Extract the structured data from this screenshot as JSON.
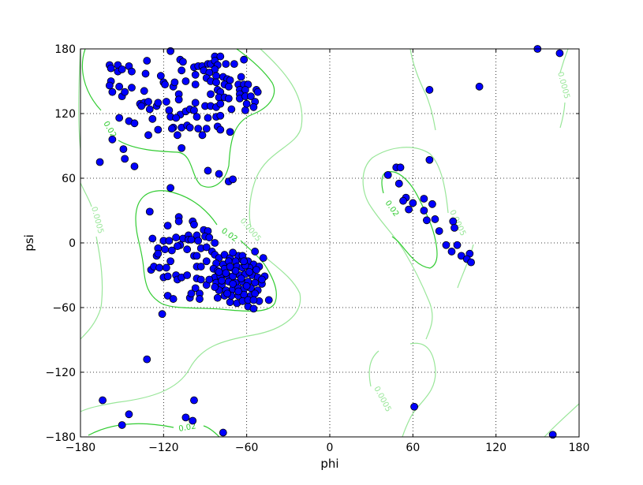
{
  "chart_data": {
    "type": "scatter",
    "title": "",
    "xlabel": "phi",
    "ylabel": "psi",
    "xlim": [
      -180,
      180
    ],
    "ylim": [
      -180,
      180
    ],
    "x_ticks": [
      "−180",
      "−120",
      "−60",
      "0",
      "60",
      "120",
      "180"
    ],
    "y_ticks": [
      "−180",
      "−120",
      "−60",
      "0",
      "60",
      "120",
      "180"
    ],
    "tick_values": [
      -180,
      -120,
      -60,
      0,
      60,
      120,
      180
    ],
    "grid": true,
    "marker_color": "#0000ff",
    "marker_edge": "#000000",
    "contour_levels": [
      {
        "level": "0.02",
        "color": "#33cc33"
      },
      {
        "level": "0.0005",
        "color": "#99e699"
      }
    ],
    "points": [
      [
        72,
        77
      ],
      [
        48,
        70
      ],
      [
        51,
        70
      ],
      [
        42,
        63
      ],
      [
        50,
        55
      ],
      [
        55,
        42
      ],
      [
        53,
        39
      ],
      [
        60,
        37
      ],
      [
        57,
        31
      ],
      [
        68,
        41
      ],
      [
        74,
        36
      ],
      [
        68,
        30
      ],
      [
        70,
        21
      ],
      [
        76,
        22
      ],
      [
        79,
        11
      ],
      [
        89,
        20
      ],
      [
        90,
        14
      ],
      [
        84,
        -2
      ],
      [
        92,
        -2
      ],
      [
        88,
        -8
      ],
      [
        95,
        -12
      ],
      [
        101,
        -10
      ],
      [
        99,
        -15
      ],
      [
        102,
        -18
      ],
      [
        72,
        142
      ],
      [
        108,
        145
      ],
      [
        61,
        -152
      ],
      [
        150,
        180
      ],
      [
        166,
        176
      ],
      [
        161,
        -178
      ],
      [
        -115,
        178
      ],
      [
        -132,
        169
      ],
      [
        -108,
        170
      ],
      [
        -106,
        168
      ],
      [
        -159,
        165
      ],
      [
        -153,
        165
      ],
      [
        -145,
        164
      ],
      [
        -158,
        162
      ],
      [
        -153,
        159
      ],
      [
        -150,
        161
      ],
      [
        -143,
        159
      ],
      [
        -133,
        157
      ],
      [
        -122,
        155
      ],
      [
        -98,
        163
      ],
      [
        -95,
        164
      ],
      [
        -92,
        164
      ],
      [
        -88,
        166
      ],
      [
        -86,
        166
      ],
      [
        -83,
        173
      ],
      [
        -79,
        173
      ],
      [
        -83,
        169
      ],
      [
        -81,
        165
      ],
      [
        -75,
        166
      ],
      [
        -69,
        166
      ],
      [
        -62,
        170
      ],
      [
        -83,
        161
      ],
      [
        -107,
        160
      ],
      [
        -97,
        156
      ],
      [
        -91,
        160
      ],
      [
        -87,
        158
      ],
      [
        -82,
        155
      ],
      [
        -89,
        153
      ],
      [
        -86,
        150
      ],
      [
        -82,
        149
      ],
      [
        -77,
        154
      ],
      [
        -74,
        152
      ],
      [
        -72,
        151
      ],
      [
        -64,
        154
      ],
      [
        -158,
        150
      ],
      [
        -159,
        146
      ],
      [
        -152,
        145
      ],
      [
        -157,
        140
      ],
      [
        -143,
        144
      ],
      [
        -150,
        136
      ],
      [
        -148,
        140
      ],
      [
        -134,
        141
      ],
      [
        -120,
        149
      ],
      [
        -119,
        147
      ],
      [
        -113,
        145
      ],
      [
        -112,
        149
      ],
      [
        -104,
        150
      ],
      [
        -97,
        147
      ],
      [
        -76,
        147
      ],
      [
        -73,
        145
      ],
      [
        -66,
        147
      ],
      [
        -62,
        147
      ],
      [
        -59,
        147
      ],
      [
        -65,
        142
      ],
      [
        -61,
        142
      ],
      [
        -53,
        142
      ],
      [
        -52,
        140
      ],
      [
        -86,
        138
      ],
      [
        -81,
        142
      ],
      [
        -79,
        140
      ],
      [
        -80,
        135
      ],
      [
        -76,
        135
      ],
      [
        -73,
        134
      ],
      [
        -65,
        138
      ],
      [
        -65,
        134
      ],
      [
        -61,
        136
      ],
      [
        -57,
        136
      ],
      [
        -109,
        138
      ],
      [
        -109,
        133
      ],
      [
        -137,
        129
      ],
      [
        -134,
        130
      ],
      [
        -131,
        131
      ],
      [
        -136,
        127
      ],
      [
        -130,
        124
      ],
      [
        -125,
        127
      ],
      [
        -124,
        130
      ],
      [
        -118,
        131
      ],
      [
        -97,
        130
      ],
      [
        -90,
        127
      ],
      [
        -86,
        127
      ],
      [
        -82,
        126
      ],
      [
        -79,
        129
      ],
      [
        -71,
        124
      ],
      [
        -61,
        123
      ],
      [
        -60,
        129
      ],
      [
        -54,
        131
      ],
      [
        -55,
        126
      ],
      [
        -116,
        123
      ],
      [
        -115,
        117
      ],
      [
        -108,
        119
      ],
      [
        -104,
        122
      ],
      [
        -101,
        124
      ],
      [
        -98,
        123
      ],
      [
        -96,
        117
      ],
      [
        -88,
        116
      ],
      [
        -82,
        117
      ],
      [
        -79,
        118
      ],
      [
        -152,
        116
      ],
      [
        -145,
        113
      ],
      [
        -141,
        111
      ],
      [
        -128,
        115
      ],
      [
        -113,
        107
      ],
      [
        -114,
        106
      ],
      [
        -111,
        116
      ],
      [
        -107,
        107
      ],
      [
        -103,
        109
      ],
      [
        -101,
        107
      ],
      [
        -95,
        106
      ],
      [
        -89,
        106
      ],
      [
        -92,
        100
      ],
      [
        -81,
        108
      ],
      [
        -79,
        105
      ],
      [
        -72,
        103
      ],
      [
        -124,
        105
      ],
      [
        -131,
        100
      ],
      [
        -110,
        100
      ],
      [
        -157,
        96
      ],
      [
        -149,
        87
      ],
      [
        -148,
        78
      ],
      [
        -141,
        71
      ],
      [
        -166,
        75
      ],
      [
        -107,
        88
      ],
      [
        -88,
        67
      ],
      [
        -80,
        64
      ],
      [
        -73,
        57
      ],
      [
        -70,
        59
      ],
      [
        -115,
        51
      ],
      [
        -130,
        29
      ],
      [
        -109,
        24
      ],
      [
        -109,
        20
      ],
      [
        -99,
        20
      ],
      [
        -98,
        17
      ],
      [
        -117,
        16
      ],
      [
        -91,
        12
      ],
      [
        -88,
        11
      ],
      [
        -128,
        4
      ],
      [
        -111,
        5
      ],
      [
        -120,
        2
      ],
      [
        -116,
        2
      ],
      [
        -106,
        4
      ],
      [
        -102,
        7
      ],
      [
        -102,
        3
      ],
      [
        -100,
        3
      ],
      [
        -96,
        7
      ],
      [
        -95,
        2
      ],
      [
        -90,
        6
      ],
      [
        -87,
        5
      ],
      [
        -108,
        -2
      ],
      [
        -110,
        -3
      ],
      [
        -114,
        -7
      ],
      [
        -119,
        -6
      ],
      [
        -124,
        -5
      ],
      [
        -125,
        -12
      ],
      [
        -124,
        -10
      ],
      [
        -103,
        -6
      ],
      [
        -98,
        -12
      ],
      [
        -96,
        -12
      ],
      [
        -93,
        -5
      ],
      [
        -89,
        -4
      ],
      [
        -83,
        0
      ],
      [
        -85,
        -8
      ],
      [
        -115,
        -17
      ],
      [
        -129,
        -25
      ],
      [
        -127,
        -22
      ],
      [
        -123,
        -23
      ],
      [
        -118,
        -23
      ],
      [
        -96,
        -22
      ],
      [
        -93,
        -22
      ],
      [
        -89,
        -17
      ],
      [
        -54,
        -8
      ],
      [
        -48,
        -14
      ],
      [
        -120,
        -32
      ],
      [
        -117,
        -31
      ],
      [
        -111,
        -30
      ],
      [
        -110,
        -34
      ],
      [
        -107,
        -32
      ],
      [
        -103,
        -30
      ],
      [
        -96,
        -33
      ],
      [
        -93,
        -34
      ],
      [
        -89,
        -39
      ],
      [
        -97,
        -42
      ],
      [
        -117,
        -49
      ],
      [
        -113,
        -52
      ],
      [
        -101,
        -51
      ],
      [
        -100,
        -47
      ],
      [
        -94,
        -47
      ],
      [
        -94,
        -52
      ],
      [
        -81,
        -51
      ],
      [
        -72,
        -55
      ],
      [
        -67,
        -56
      ],
      [
        -59,
        -59
      ],
      [
        -55,
        -61
      ],
      [
        -51,
        -54
      ],
      [
        -44,
        -53
      ],
      [
        -121,
        -66
      ],
      [
        -83,
        -11
      ],
      [
        -80,
        -14
      ],
      [
        -76,
        -11
      ],
      [
        -72,
        -14
      ],
      [
        -66,
        -12
      ],
      [
        -82,
        -19
      ],
      [
        -77,
        -20
      ],
      [
        -73,
        -17
      ],
      [
        -68,
        -17
      ],
      [
        -63,
        -16
      ],
      [
        -59,
        -17
      ],
      [
        -55,
        -20
      ],
      [
        -51,
        -22
      ],
      [
        -84,
        -24
      ],
      [
        -81,
        -26
      ],
      [
        -76,
        -24
      ],
      [
        -71,
        -23
      ],
      [
        -67,
        -22
      ],
      [
        -63,
        -23
      ],
      [
        -58,
        -23
      ],
      [
        -53,
        -25
      ],
      [
        -47,
        -31
      ],
      [
        -83,
        -32
      ],
      [
        -79,
        -31
      ],
      [
        -74,
        -30
      ],
      [
        -70,
        -31
      ],
      [
        -65,
        -30
      ],
      [
        -61,
        -29
      ],
      [
        -56,
        -30
      ],
      [
        -52,
        -32
      ],
      [
        -82,
        -37
      ],
      [
        -78,
        -39
      ],
      [
        -73,
        -36
      ],
      [
        -68,
        -37
      ],
      [
        -63,
        -36
      ],
      [
        -59,
        -36
      ],
      [
        -54,
        -37
      ],
      [
        -49,
        -38
      ],
      [
        -80,
        -44
      ],
      [
        -75,
        -44
      ],
      [
        -70,
        -43
      ],
      [
        -66,
        -42
      ],
      [
        -62,
        -43
      ],
      [
        -57,
        -42
      ],
      [
        -52,
        -44
      ],
      [
        -76,
        -49
      ],
      [
        -71,
        -49
      ],
      [
        -66,
        -49
      ],
      [
        -62,
        -48
      ],
      [
        -57,
        -49
      ],
      [
        -54,
        -47
      ],
      [
        -63,
        -54
      ],
      [
        -59,
        -53
      ],
      [
        -55,
        -53
      ],
      [
        -87,
        -34
      ],
      [
        -83,
        -41
      ],
      [
        -63,
        -12
      ],
      [
        -70,
        -9
      ],
      [
        -61,
        -21
      ],
      [
        -49,
        -34
      ],
      [
        -75,
        -28
      ],
      [
        -68,
        -26
      ],
      [
        -64,
        -33
      ],
      [
        -60,
        -40
      ],
      [
        -70,
        -38
      ],
      [
        -78,
        -35
      ],
      [
        -72,
        -22
      ],
      [
        -66,
        -45
      ],
      [
        -58,
        -27
      ],
      [
        -62,
        -17
      ],
      [
        -74,
        -47
      ],
      [
        -80,
        -27
      ],
      [
        -132,
        -108
      ],
      [
        -164,
        -146
      ],
      [
        -145,
        -159
      ],
      [
        -150,
        -169
      ],
      [
        -104,
        -162
      ],
      [
        -98,
        -146
      ],
      [
        -99,
        -165
      ],
      [
        -77,
        -176
      ]
    ]
  }
}
